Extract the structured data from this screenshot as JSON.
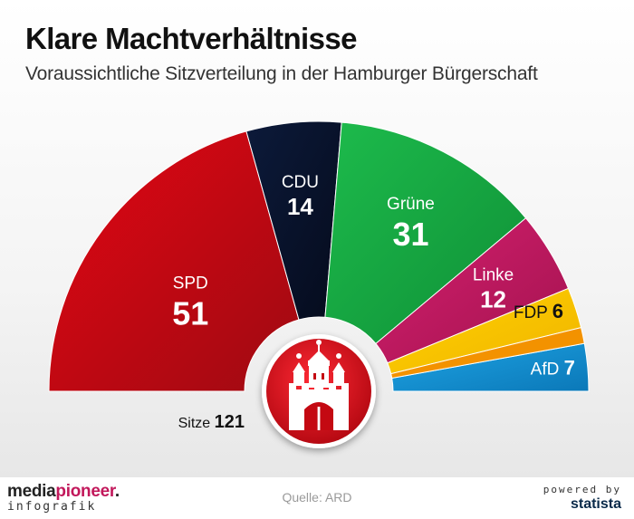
{
  "header": {
    "title": "Klare Machtverhältnisse",
    "subtitle": "Voraussichtliche Sitzverteilung in der Hamburger Bürgerschaft"
  },
  "chart_data": {
    "type": "pie",
    "variant": "semicircle-parliament",
    "title": "Klare Machtverhältnisse",
    "subtitle": "Voraussichtliche Sitzverteilung in der Hamburger Bürgerschaft",
    "total_label": "Sitze",
    "total": 121,
    "slices": [
      {
        "name": "SPD",
        "value": 51,
        "color": "#e30613",
        "color_dark": "#9e0a12",
        "text_color": "#ffffff",
        "label_style": "inside-stacked"
      },
      {
        "name": "CDU",
        "value": 14,
        "color": "#0c1a3a",
        "color_dark": "#050b1c",
        "text_color": "#ffffff",
        "label_style": "inside-stacked"
      },
      {
        "name": "Grüne",
        "value": 31,
        "color": "#1dbb4c",
        "color_dark": "#0f8f36",
        "text_color": "#ffffff",
        "label_style": "inside-stacked"
      },
      {
        "name": "Linke",
        "value": 12,
        "color": "#d41f6e",
        "color_dark": "#a3134f",
        "text_color": "#ffffff",
        "label_style": "inside-stacked"
      },
      {
        "name": "FDP",
        "value": 6,
        "color": "#ffd200",
        "color_dark": "#f0b400",
        "text_color": "#111111",
        "label_style": "right-inline"
      },
      {
        "name": "AfD",
        "value": 7,
        "color": "#1ea4e4",
        "color_dark": "#0b78b8",
        "text_color": "#ffffff",
        "label_style": "right-inline"
      }
    ],
    "extra_band": {
      "name": "",
      "color": "#f39200"
    }
  },
  "emblem": {
    "name": "Hamburg coat of arms",
    "color": "#e30613"
  },
  "footer": {
    "brand_part1": "media",
    "brand_part2": "pioneer",
    "brand_dot": ".",
    "brand_sub": "infografik",
    "source": "Quelle: ARD",
    "powered_by": "powered by",
    "statista": "statista"
  }
}
